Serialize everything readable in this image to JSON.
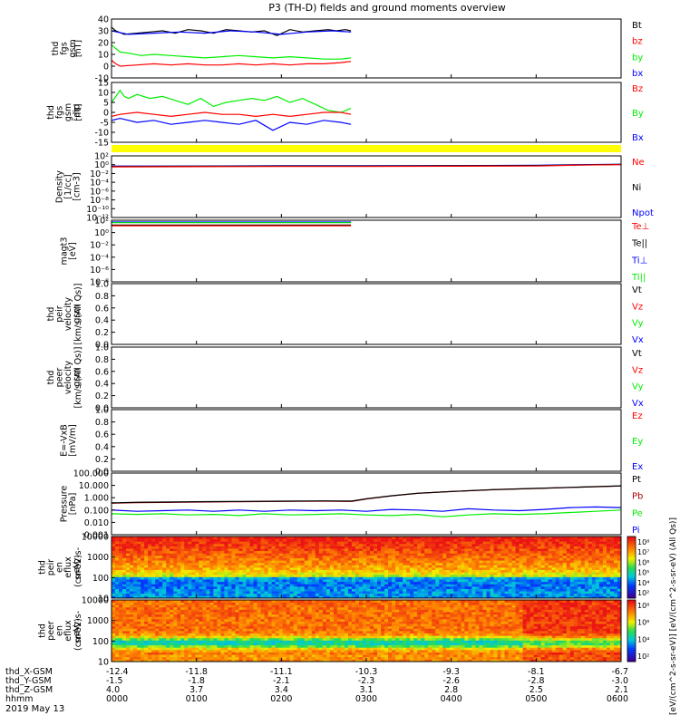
{
  "title": "P3 (TH-D) fields and ground moments overview",
  "date_label": "2019 May 13",
  "colors": {
    "black": "#000000",
    "red": "#ff0000",
    "green": "#00ee00",
    "blue": "#0000ff",
    "yellow": "#ffff00",
    "darkred": "#aa0000"
  },
  "chart_data": [
    {
      "type": "line",
      "ylabel": [
        "thd",
        "fgs",
        "gsm",
        "[nT]"
      ],
      "ylim": [
        -10,
        40
      ],
      "yticks": [
        "-10",
        "0",
        "10",
        "20",
        "30",
        "40"
      ],
      "legend": [
        {
          "name": "Bt",
          "color": "#000000"
        },
        {
          "name": "bz",
          "color": "#ff0000"
        },
        {
          "name": "by",
          "color": "#00ee00"
        },
        {
          "name": "bx",
          "color": "#0000ff"
        }
      ],
      "series": [
        {
          "name": "Bt",
          "color": "#000000",
          "x": [
            0,
            0.05,
            0.15,
            0.3,
            0.45,
            0.6,
            0.75,
            0.9,
            1.05,
            1.2,
            1.35,
            1.5,
            1.65,
            1.8,
            1.95,
            2.1,
            2.25,
            2.4,
            2.55,
            2.65,
            2.75,
            2.82
          ],
          "y": [
            33,
            30,
            27,
            28,
            29,
            30,
            28,
            31,
            30,
            28,
            31,
            30,
            29,
            30,
            26,
            31,
            29,
            30,
            31,
            30,
            31,
            30
          ]
        },
        {
          "name": "bx",
          "color": "#0000ff",
          "x": [
            0,
            0.2,
            0.5,
            0.8,
            1.1,
            1.4,
            1.7,
            2.0,
            2.3,
            2.6,
            2.82
          ],
          "y": [
            30,
            27,
            28,
            29,
            28,
            30,
            29,
            27,
            29,
            30,
            29
          ]
        },
        {
          "name": "by",
          "color": "#00ee00",
          "x": [
            0,
            0.05,
            0.1,
            0.2,
            0.35,
            0.5,
            0.7,
            0.9,
            1.1,
            1.3,
            1.5,
            1.7,
            1.9,
            2.1,
            2.3,
            2.5,
            2.7,
            2.82
          ],
          "y": [
            18,
            15,
            12,
            11,
            9,
            10,
            9,
            8,
            7,
            8,
            9,
            8,
            7,
            8,
            7,
            6,
            6,
            7
          ]
        },
        {
          "name": "bz",
          "color": "#ff0000",
          "x": [
            0,
            0.05,
            0.1,
            0.3,
            0.5,
            0.7,
            0.9,
            1.1,
            1.3,
            1.5,
            1.7,
            1.9,
            2.1,
            2.3,
            2.5,
            2.7,
            2.82
          ],
          "y": [
            5,
            2,
            0,
            1,
            2,
            1,
            2,
            1,
            1,
            2,
            1,
            2,
            1,
            2,
            2,
            3,
            4
          ]
        }
      ]
    },
    {
      "type": "line",
      "ylabel": [
        "thd",
        "fgs",
        "gsm",
        "-dip",
        "[nT]"
      ],
      "ylim": [
        -15,
        15
      ],
      "yticks": [
        "-15",
        "-10",
        "-5",
        "0",
        "5",
        "10",
        "15"
      ],
      "legend": [
        {
          "name": "Bz",
          "color": "#ff0000"
        },
        {
          "name": "By",
          "color": "#00ee00"
        },
        {
          "name": "Bx",
          "color": "#0000ff"
        }
      ],
      "series": [
        {
          "name": "By",
          "color": "#00ee00",
          "x": [
            0,
            0.05,
            0.1,
            0.15,
            0.2,
            0.3,
            0.45,
            0.6,
            0.75,
            0.9,
            1.05,
            1.2,
            1.35,
            1.5,
            1.65,
            1.8,
            1.95,
            2.1,
            2.25,
            2.4,
            2.55,
            2.7,
            2.82
          ],
          "y": [
            5,
            8,
            11,
            8,
            7,
            9,
            7,
            8,
            6,
            4,
            7,
            3,
            5,
            6,
            7,
            6,
            8,
            5,
            7,
            4,
            1,
            0,
            2
          ]
        },
        {
          "name": "Bz",
          "color": "#ff0000",
          "x": [
            0,
            0.1,
            0.3,
            0.5,
            0.7,
            0.9,
            1.1,
            1.3,
            1.5,
            1.7,
            1.9,
            2.1,
            2.3,
            2.5,
            2.7,
            2.82
          ],
          "y": [
            -2,
            -1,
            0,
            -1,
            -2,
            -1,
            0,
            -1,
            -1,
            -2,
            -1,
            -2,
            -1,
            0,
            0,
            -1
          ]
        },
        {
          "name": "Bx",
          "color": "#0000ff",
          "x": [
            0,
            0.1,
            0.3,
            0.5,
            0.7,
            0.9,
            1.1,
            1.3,
            1.5,
            1.7,
            1.9,
            2.1,
            2.3,
            2.5,
            2.7,
            2.82
          ],
          "y": [
            -4,
            -3,
            -5,
            -4,
            -6,
            -5,
            -4,
            -5,
            -6,
            -4,
            -9,
            -5,
            -6,
            -4,
            -5,
            -6
          ]
        }
      ]
    },
    {
      "type": "bar",
      "ylabel": [],
      "color": "#ffff00"
    },
    {
      "type": "line",
      "ylabel": [
        "Density",
        "[1/cc]",
        "[cm-3]"
      ],
      "ylog": true,
      "ylim": [
        -12,
        2
      ],
      "yticks": [
        "10⁻¹²",
        "10⁻¹⁰",
        "10⁻⁸",
        "10⁻⁶",
        "10⁻⁴",
        "10⁻²",
        "10⁰",
        "10²"
      ],
      "legend": [
        {
          "name": "Ne",
          "color": "#ff0000"
        },
        {
          "name": "Ni",
          "color": "#000000"
        },
        {
          "name": "Npot",
          "color": "#0000ff"
        }
      ],
      "series": [
        {
          "name": "Npot",
          "color": "#0000ff",
          "x": [
            0,
            1,
            2,
            3,
            4,
            5,
            5.5,
            6
          ],
          "y": [
            -0.3,
            -0.3,
            -0.25,
            -0.25,
            -0.2,
            -0.15,
            0,
            0.1
          ]
        },
        {
          "name": "Ni",
          "color": "#000000",
          "x": [
            0,
            1,
            2,
            3,
            4,
            5,
            5.5,
            6
          ],
          "y": [
            -0.4,
            -0.35,
            -0.3,
            -0.3,
            -0.25,
            -0.2,
            -0.05,
            0.05
          ]
        },
        {
          "name": "Ne",
          "color": "#ff0000",
          "x": [
            0,
            1,
            2,
            3,
            4,
            5,
            5.5,
            6
          ],
          "y": [
            -0.5,
            -0.45,
            -0.4,
            -0.4,
            -0.35,
            -0.3,
            -0.1,
            0
          ]
        }
      ]
    },
    {
      "type": "line",
      "ylabel": [
        "magt3",
        "[eV]"
      ],
      "ylog": true,
      "ylim": [
        -8,
        2
      ],
      "yticks": [
        "10⁻⁸",
        "10⁻⁶",
        "10⁻⁴",
        "10⁻²",
        "10⁰",
        "10²"
      ],
      "legend": [
        {
          "name": "Te⊥",
          "color": "#ff0000"
        },
        {
          "name": "Te||",
          "color": "#000000"
        },
        {
          "name": "Ti⊥",
          "color": "#0000ff"
        },
        {
          "name": "Ti||",
          "color": "#00ee00"
        }
      ],
      "series": [
        {
          "name": "Ti⊥",
          "color": "#0000ff",
          "x": [
            0,
            2.82
          ],
          "y": [
            1.7,
            1.7
          ]
        },
        {
          "name": "Ti||",
          "color": "#00ee00",
          "x": [
            0,
            2.82
          ],
          "y": [
            1.6,
            1.6
          ]
        },
        {
          "name": "Te||",
          "color": "#000000",
          "x": [
            0,
            2.82
          ],
          "y": [
            1.2,
            1.2
          ]
        },
        {
          "name": "Te⊥",
          "color": "#ff0000",
          "x": [
            0,
            2.82
          ],
          "y": [
            1.1,
            1.1
          ]
        }
      ]
    },
    {
      "type": "line",
      "ylabel": [
        "thd",
        "peir",
        "velocity",
        "gsm",
        "[km/s (All Qs)]"
      ],
      "ylim": [
        0,
        1
      ],
      "yticks": [
        "0.0",
        "0.2",
        "0.4",
        "0.6",
        "0.8",
        "1.0"
      ],
      "legend": [
        {
          "name": "Vt",
          "color": "#000000"
        },
        {
          "name": "Vz",
          "color": "#ff0000"
        },
        {
          "name": "Vy",
          "color": "#00ee00"
        },
        {
          "name": "Vx",
          "color": "#0000ff"
        }
      ],
      "series": []
    },
    {
      "type": "line",
      "ylabel": [
        "thd",
        "peer",
        "velocity",
        "gsm",
        "[km/s (All Qs)]"
      ],
      "ylim": [
        0,
        1
      ],
      "yticks": [
        "0.0",
        "0.2",
        "0.4",
        "0.6",
        "0.8",
        "1.0"
      ],
      "legend": [
        {
          "name": "Vt",
          "color": "#000000"
        },
        {
          "name": "Vz",
          "color": "#ff0000"
        },
        {
          "name": "Vy",
          "color": "#00ee00"
        },
        {
          "name": "Vx",
          "color": "#0000ff"
        }
      ],
      "series": []
    },
    {
      "type": "line",
      "ylabel": [
        "E=-VxB",
        "[mV/m]"
      ],
      "ylim": [
        0,
        1
      ],
      "yticks": [
        "0.0",
        "0.2",
        "0.4",
        "0.6",
        "0.8",
        "1.0"
      ],
      "legend": [
        {
          "name": "Ez",
          "color": "#ff0000"
        },
        {
          "name": "Ey",
          "color": "#00ee00"
        },
        {
          "name": "Ex",
          "color": "#0000ff"
        }
      ],
      "series": []
    },
    {
      "type": "line",
      "ylabel": [
        "Pressure",
        "[nPa]"
      ],
      "ylog": true,
      "ylim": [
        -3,
        2
      ],
      "yticks": [
        "0.001",
        "0.010",
        "0.100",
        "1.000",
        "10.000",
        "100.000"
      ],
      "legend": [
        {
          "name": "Pt",
          "color": "#000000"
        },
        {
          "name": "Pb",
          "color": "#aa0000"
        },
        {
          "name": "Pe",
          "color": "#00ee00"
        },
        {
          "name": "Pi",
          "color": "#0000ff"
        }
      ],
      "series": [
        {
          "name": "Pb",
          "color": "#aa0000",
          "x": [
            0,
            0.3,
            0.6,
            1.0,
            1.5,
            2.0,
            2.5,
            2.83,
            3.0,
            3.3,
            3.6,
            4.0,
            4.5,
            5.0,
            5.5,
            6.0
          ],
          "y": [
            -0.45,
            -0.4,
            -0.38,
            -0.35,
            -0.32,
            -0.3,
            -0.28,
            -0.3,
            -0.1,
            0.15,
            0.35,
            0.5,
            0.65,
            0.75,
            0.85,
            0.95
          ]
        },
        {
          "name": "Pt",
          "color": "#000000",
          "x": [
            0,
            0.3,
            0.6,
            1.0,
            1.5,
            2.0,
            2.5,
            2.83,
            3.0,
            3.3,
            3.6,
            4.0,
            4.5,
            5.0,
            5.5,
            6.0
          ],
          "y": [
            -0.42,
            -0.37,
            -0.35,
            -0.32,
            -0.3,
            -0.28,
            -0.26,
            -0.27,
            -0.08,
            0.16,
            0.36,
            0.51,
            0.66,
            0.76,
            0.86,
            0.96
          ]
        },
        {
          "name": "Pi",
          "color": "#0000ff",
          "x": [
            0,
            0.3,
            0.6,
            0.9,
            1.2,
            1.5,
            1.8,
            2.1,
            2.4,
            2.7,
            3.0,
            3.3,
            3.6,
            3.9,
            4.2,
            4.5,
            4.8,
            5.1,
            5.4,
            5.7,
            6.0
          ],
          "y": [
            -1.0,
            -1.1,
            -1.05,
            -1.0,
            -1.1,
            -1.0,
            -1.1,
            -1.0,
            -1.05,
            -1.0,
            -1.1,
            -0.95,
            -1.0,
            -1.1,
            -0.9,
            -1.0,
            -1.05,
            -0.95,
            -0.8,
            -0.75,
            -0.8
          ]
        },
        {
          "name": "Pe",
          "color": "#00ee00",
          "x": [
            0,
            0.3,
            0.6,
            0.9,
            1.2,
            1.5,
            1.8,
            2.1,
            2.4,
            2.7,
            3.0,
            3.3,
            3.6,
            3.9,
            4.2,
            4.5,
            4.8,
            5.1,
            5.4,
            5.7,
            6.0
          ],
          "y": [
            -1.3,
            -1.35,
            -1.3,
            -1.4,
            -1.35,
            -1.45,
            -1.3,
            -1.4,
            -1.35,
            -1.3,
            -1.4,
            -1.45,
            -1.35,
            -1.55,
            -1.4,
            -1.3,
            -1.35,
            -1.3,
            -1.2,
            -1.1,
            -1.0
          ]
        }
      ]
    },
    {
      "type": "heatmap",
      "ylabel": [
        "thd",
        "peir",
        "en",
        "eflux",
        "eV",
        "(cm^2-s-",
        "sr-eV)"
      ],
      "ylog": true,
      "ylim": [
        0.7,
        4.2
      ],
      "yticks": [
        "10",
        "100",
        "1000",
        "10000"
      ],
      "colorbar_ticks": [
        "10²",
        "10⁴",
        "10⁵",
        "10⁶",
        "10⁷",
        "10⁸"
      ]
    },
    {
      "type": "heatmap",
      "ylabel": [
        "thd",
        "peer",
        "en",
        "eflux",
        "eV",
        "(cm^2-s-",
        "sr-eV)"
      ],
      "ylog": true,
      "ylim": [
        0.7,
        4.3
      ],
      "yticks": [
        "10",
        "100",
        "1000",
        "10000"
      ],
      "colorbar_ticks": [
        "10²",
        "10⁴",
        "10⁶",
        "10⁸"
      ],
      "colorbar_label": "[eV/(cm^2-s-sr-eV)] [eV/(cm^2-s-sr-eV) (All Qs)]"
    }
  ],
  "time_axis": {
    "rows": [
      {
        "label": "thd_X-GSM",
        "values": [
          "-12.4",
          "-11.8",
          "-11.1",
          "-10.3",
          "-9.3",
          "-8.1",
          "-6.7"
        ]
      },
      {
        "label": "thd_Y-GSM",
        "values": [
          "-1.5",
          "-1.8",
          "-2.1",
          "-2.3",
          "-2.6",
          "-2.8",
          "-3.0"
        ]
      },
      {
        "label": "thd_Z-GSM",
        "values": [
          "4.0",
          "3.7",
          "3.4",
          "3.1",
          "2.8",
          "2.5",
          "2.1"
        ]
      },
      {
        "label": "hhmm",
        "values": [
          "0000",
          "0100",
          "0200",
          "0300",
          "0400",
          "0500",
          "0600"
        ]
      }
    ],
    "xlim": [
      0,
      6
    ]
  }
}
